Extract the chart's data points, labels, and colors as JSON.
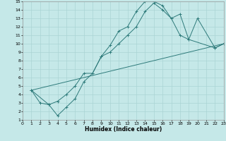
{
  "xlabel": "Humidex (Indice chaleur)",
  "bg_color": "#c5e8e8",
  "grid_color": "#aad4d4",
  "line_color": "#2d7a7a",
  "xlim": [
    0,
    23
  ],
  "ylim": [
    1,
    15
  ],
  "xticks": [
    0,
    1,
    2,
    3,
    4,
    5,
    6,
    7,
    8,
    9,
    10,
    11,
    12,
    13,
    14,
    15,
    16,
    17,
    18,
    19,
    20,
    21,
    22,
    23
  ],
  "yticks": [
    1,
    2,
    3,
    4,
    5,
    6,
    7,
    8,
    9,
    10,
    11,
    12,
    13,
    14,
    15
  ],
  "line1_x": [
    1,
    2,
    3,
    4,
    5,
    6,
    7,
    8,
    9,
    10,
    11,
    12,
    13,
    14,
    15,
    16,
    17,
    18,
    19,
    22,
    23
  ],
  "line1_y": [
    4.5,
    3.0,
    2.8,
    1.5,
    2.5,
    3.5,
    5.5,
    6.5,
    8.5,
    9.8,
    11.5,
    12.0,
    13.8,
    15.0,
    15.0,
    14.5,
    13.0,
    11.0,
    10.5,
    9.5,
    10.0
  ],
  "line2_x": [
    1,
    3,
    4,
    5,
    6,
    7,
    8,
    9,
    10,
    11,
    12,
    13,
    14,
    15,
    16,
    17,
    18,
    19,
    20,
    22,
    23
  ],
  "line2_y": [
    4.5,
    2.8,
    3.2,
    4.0,
    5.0,
    6.5,
    6.5,
    8.5,
    9.0,
    10.0,
    11.0,
    12.0,
    13.8,
    14.8,
    14.0,
    13.0,
    13.5,
    10.5,
    13.0,
    9.5,
    10.0
  ],
  "line3_x": [
    1,
    23
  ],
  "line3_y": [
    4.5,
    10.0
  ]
}
